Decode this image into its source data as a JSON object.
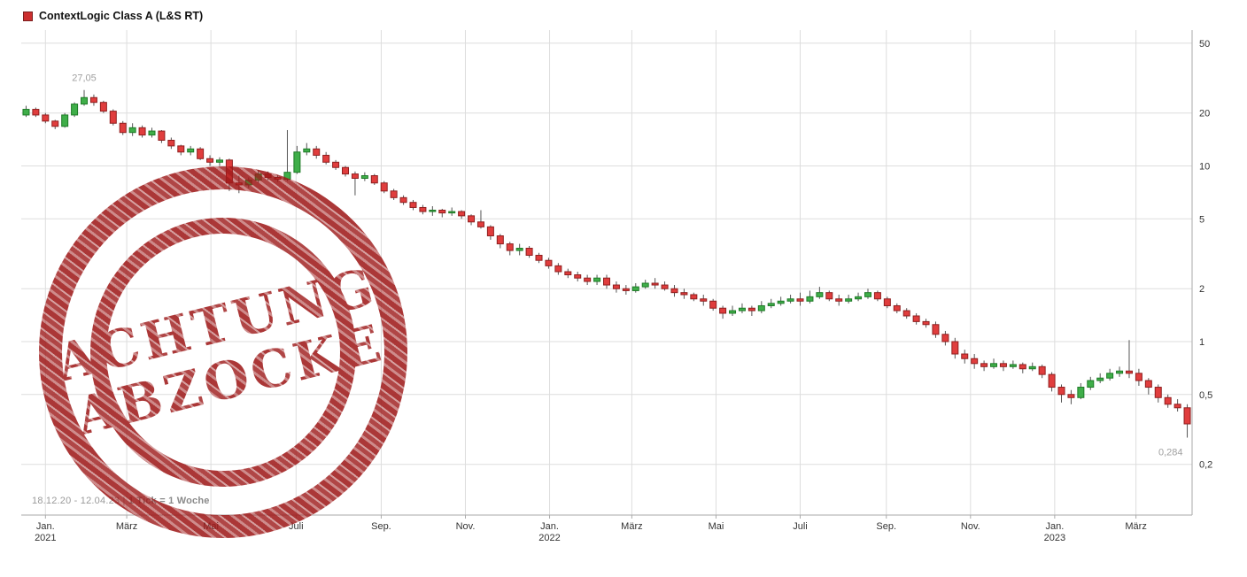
{
  "header": {
    "title": "ContextLogic Class A (L&S RT)",
    "legend_color": "#cc2f2f"
  },
  "footer": {
    "date_range": "18.12.20 - 12.04.23",
    "separator": "|",
    "tick_info": "1 Tick = 1 Woche"
  },
  "watermark": {
    "line1": "ACHTUNG",
    "line2": "ABZOCKE",
    "color": "#9e1a1a"
  },
  "chart_data": {
    "type": "candlestick",
    "title": "ContextLogic Class A (L&S RT)",
    "period": "18.12.20 - 12.04.23",
    "interval": "1 Woche",
    "scale": "log",
    "grid": true,
    "ylim": [
      0.2,
      50
    ],
    "y_ticks": [
      {
        "value": 50,
        "label": "50"
      },
      {
        "value": 20,
        "label": "20"
      },
      {
        "value": 10,
        "label": "10"
      },
      {
        "value": 5,
        "label": "5"
      },
      {
        "value": 2,
        "label": "2"
      },
      {
        "value": 1,
        "label": "1"
      },
      {
        "value": 0.5,
        "label": "0,5"
      },
      {
        "value": 0.2,
        "label": "0,2"
      }
    ],
    "x_ticks": [
      {
        "label": "Jan.",
        "year": "2021",
        "week": 2
      },
      {
        "label": "März",
        "week": 10.4
      },
      {
        "label": "Mai",
        "week": 19.1
      },
      {
        "label": "Juli",
        "week": 27.9
      },
      {
        "label": "Sep.",
        "week": 36.7
      },
      {
        "label": "Nov.",
        "week": 45.4
      },
      {
        "label": "Jan.",
        "year": "2022",
        "week": 54.1
      },
      {
        "label": "März",
        "week": 62.6
      },
      {
        "label": "Mai",
        "week": 71.3
      },
      {
        "label": "Juli",
        "week": 80.0
      },
      {
        "label": "Sep.",
        "week": 88.9
      },
      {
        "label": "Nov.",
        "week": 97.6
      },
      {
        "label": "Jan.",
        "year": "2023",
        "week": 106.3
      },
      {
        "label": "März",
        "week": 114.7
      }
    ],
    "annotations": {
      "high": {
        "label": "27,05",
        "value": 27.05,
        "week": 6
      },
      "low": {
        "label": "0,284",
        "value": 0.284,
        "week": 120
      }
    },
    "colors": {
      "up": "#3fae49",
      "up_border": "#1d7a26",
      "down": "#e03d3d",
      "down_border": "#8f1f1f",
      "wick": "#555555",
      "grid": "#dddddd",
      "axis": "#aaaaaa",
      "label": "#333333",
      "muted": "#a0a0a0"
    },
    "candles": [
      [
        19.5,
        22.0,
        19.0,
        21.0
      ],
      [
        21.0,
        21.5,
        19.0,
        19.5
      ],
      [
        19.5,
        20.0,
        17.5,
        18.0
      ],
      [
        18.0,
        18.3,
        16.2,
        16.8
      ],
      [
        16.8,
        20.0,
        16.5,
        19.5
      ],
      [
        19.5,
        23.0,
        19.0,
        22.5
      ],
      [
        22.5,
        27.05,
        22.0,
        24.5
      ],
      [
        24.5,
        25.5,
        22.0,
        23.0
      ],
      [
        23.0,
        23.5,
        20.0,
        20.5
      ],
      [
        20.5,
        21.0,
        17.0,
        17.5
      ],
      [
        17.5,
        18.0,
        15.0,
        15.5
      ],
      [
        15.5,
        17.5,
        14.8,
        16.5
      ],
      [
        16.5,
        17.0,
        14.5,
        15.0
      ],
      [
        15.0,
        16.5,
        14.5,
        15.8
      ],
      [
        15.8,
        16.0,
        13.5,
        14.0
      ],
      [
        14.0,
        14.5,
        12.5,
        13.0
      ],
      [
        13.0,
        13.2,
        11.5,
        12.0
      ],
      [
        12.0,
        13.0,
        11.5,
        12.5
      ],
      [
        12.5,
        12.8,
        10.8,
        11.0
      ],
      [
        11.0,
        11.5,
        10.0,
        10.5
      ],
      [
        10.5,
        11.2,
        10.0,
        10.8
      ],
      [
        10.8,
        11.0,
        7.2,
        8.0
      ],
      [
        8.0,
        8.8,
        7.0,
        7.8
      ],
      [
        7.8,
        8.6,
        7.5,
        8.3
      ],
      [
        8.3,
        9.5,
        8.0,
        9.0
      ],
      [
        9.0,
        9.3,
        8.3,
        8.6
      ],
      [
        8.6,
        8.9,
        8.1,
        8.4
      ],
      [
        8.4,
        16.0,
        8.2,
        9.2
      ],
      [
        9.2,
        13.0,
        9.0,
        12.0
      ],
      [
        12.0,
        13.5,
        11.5,
        12.5
      ],
      [
        12.5,
        13.0,
        11.0,
        11.5
      ],
      [
        11.5,
        12.0,
        10.2,
        10.5
      ],
      [
        10.5,
        10.8,
        9.5,
        9.8
      ],
      [
        9.8,
        10.0,
        8.7,
        9.0
      ],
      [
        9.0,
        9.3,
        6.8,
        8.5
      ],
      [
        8.5,
        9.2,
        8.2,
        8.8
      ],
      [
        8.8,
        9.0,
        7.8,
        8.0
      ],
      [
        8.0,
        8.2,
        7.0,
        7.2
      ],
      [
        7.2,
        7.4,
        6.4,
        6.6
      ],
      [
        6.6,
        6.8,
        6.0,
        6.2
      ],
      [
        6.2,
        6.4,
        5.6,
        5.8
      ],
      [
        5.8,
        6.0,
        5.3,
        5.5
      ],
      [
        5.5,
        5.9,
        5.2,
        5.6
      ],
      [
        5.6,
        5.7,
        5.1,
        5.4
      ],
      [
        5.4,
        5.8,
        5.2,
        5.5
      ],
      [
        5.5,
        5.6,
        5.0,
        5.2
      ],
      [
        5.2,
        5.3,
        4.6,
        4.8
      ],
      [
        4.8,
        5.6,
        4.4,
        4.5
      ],
      [
        4.5,
        4.6,
        3.8,
        4.0
      ],
      [
        4.0,
        4.1,
        3.4,
        3.6
      ],
      [
        3.6,
        3.7,
        3.1,
        3.3
      ],
      [
        3.3,
        3.6,
        3.1,
        3.4
      ],
      [
        3.4,
        3.5,
        3.0,
        3.1
      ],
      [
        3.1,
        3.2,
        2.8,
        2.9
      ],
      [
        2.9,
        3.0,
        2.6,
        2.7
      ],
      [
        2.7,
        2.8,
        2.4,
        2.5
      ],
      [
        2.5,
        2.6,
        2.3,
        2.4
      ],
      [
        2.4,
        2.5,
        2.2,
        2.3
      ],
      [
        2.3,
        2.4,
        2.1,
        2.2
      ],
      [
        2.2,
        2.4,
        2.1,
        2.3
      ],
      [
        2.3,
        2.4,
        2.0,
        2.1
      ],
      [
        2.1,
        2.2,
        1.9,
        2.0
      ],
      [
        2.0,
        2.1,
        1.85,
        1.95
      ],
      [
        1.95,
        2.15,
        1.9,
        2.05
      ],
      [
        2.05,
        2.25,
        2.0,
        2.15
      ],
      [
        2.15,
        2.3,
        2.0,
        2.1
      ],
      [
        2.1,
        2.2,
        1.95,
        2.0
      ],
      [
        2.0,
        2.1,
        1.8,
        1.9
      ],
      [
        1.9,
        2.0,
        1.75,
        1.85
      ],
      [
        1.85,
        1.9,
        1.7,
        1.75
      ],
      [
        1.75,
        1.85,
        1.6,
        1.7
      ],
      [
        1.7,
        1.75,
        1.5,
        1.55
      ],
      [
        1.55,
        1.6,
        1.35,
        1.45
      ],
      [
        1.45,
        1.6,
        1.4,
        1.5
      ],
      [
        1.5,
        1.65,
        1.45,
        1.55
      ],
      [
        1.55,
        1.6,
        1.4,
        1.5
      ],
      [
        1.5,
        1.7,
        1.45,
        1.6
      ],
      [
        1.6,
        1.75,
        1.55,
        1.65
      ],
      [
        1.65,
        1.8,
        1.6,
        1.7
      ],
      [
        1.7,
        1.85,
        1.65,
        1.75
      ],
      [
        1.75,
        1.9,
        1.6,
        1.7
      ],
      [
        1.7,
        1.95,
        1.65,
        1.8
      ],
      [
        1.8,
        2.05,
        1.75,
        1.9
      ],
      [
        1.9,
        1.95,
        1.7,
        1.75
      ],
      [
        1.75,
        1.85,
        1.6,
        1.7
      ],
      [
        1.7,
        1.85,
        1.65,
        1.75
      ],
      [
        1.75,
        1.9,
        1.7,
        1.8
      ],
      [
        1.8,
        2.0,
        1.75,
        1.9
      ],
      [
        1.9,
        1.95,
        1.7,
        1.75
      ],
      [
        1.75,
        1.8,
        1.55,
        1.6
      ],
      [
        1.6,
        1.65,
        1.45,
        1.5
      ],
      [
        1.5,
        1.55,
        1.35,
        1.4
      ],
      [
        1.4,
        1.45,
        1.25,
        1.3
      ],
      [
        1.3,
        1.35,
        1.2,
        1.25
      ],
      [
        1.25,
        1.3,
        1.05,
        1.1
      ],
      [
        1.1,
        1.15,
        0.95,
        1.0
      ],
      [
        1.0,
        1.05,
        0.8,
        0.85
      ],
      [
        0.85,
        0.9,
        0.75,
        0.8
      ],
      [
        0.8,
        0.85,
        0.7,
        0.75
      ],
      [
        0.75,
        0.78,
        0.68,
        0.72
      ],
      [
        0.72,
        0.8,
        0.7,
        0.75
      ],
      [
        0.75,
        0.78,
        0.68,
        0.72
      ],
      [
        0.72,
        0.78,
        0.7,
        0.74
      ],
      [
        0.74,
        0.76,
        0.66,
        0.7
      ],
      [
        0.7,
        0.76,
        0.68,
        0.72
      ],
      [
        0.72,
        0.74,
        0.62,
        0.65
      ],
      [
        0.65,
        0.67,
        0.52,
        0.55
      ],
      [
        0.55,
        0.57,
        0.45,
        0.5
      ],
      [
        0.5,
        0.53,
        0.44,
        0.48
      ],
      [
        0.48,
        0.58,
        0.47,
        0.55
      ],
      [
        0.55,
        0.63,
        0.53,
        0.6
      ],
      [
        0.6,
        0.66,
        0.58,
        0.62
      ],
      [
        0.62,
        0.7,
        0.6,
        0.66
      ],
      [
        0.66,
        0.72,
        0.63,
        0.68
      ],
      [
        0.68,
        1.02,
        0.62,
        0.66
      ],
      [
        0.66,
        0.7,
        0.56,
        0.6
      ],
      [
        0.6,
        0.62,
        0.5,
        0.55
      ],
      [
        0.55,
        0.57,
        0.45,
        0.48
      ],
      [
        0.48,
        0.5,
        0.42,
        0.44
      ],
      [
        0.44,
        0.47,
        0.4,
        0.42
      ],
      [
        0.42,
        0.44,
        0.284,
        0.34
      ]
    ]
  }
}
